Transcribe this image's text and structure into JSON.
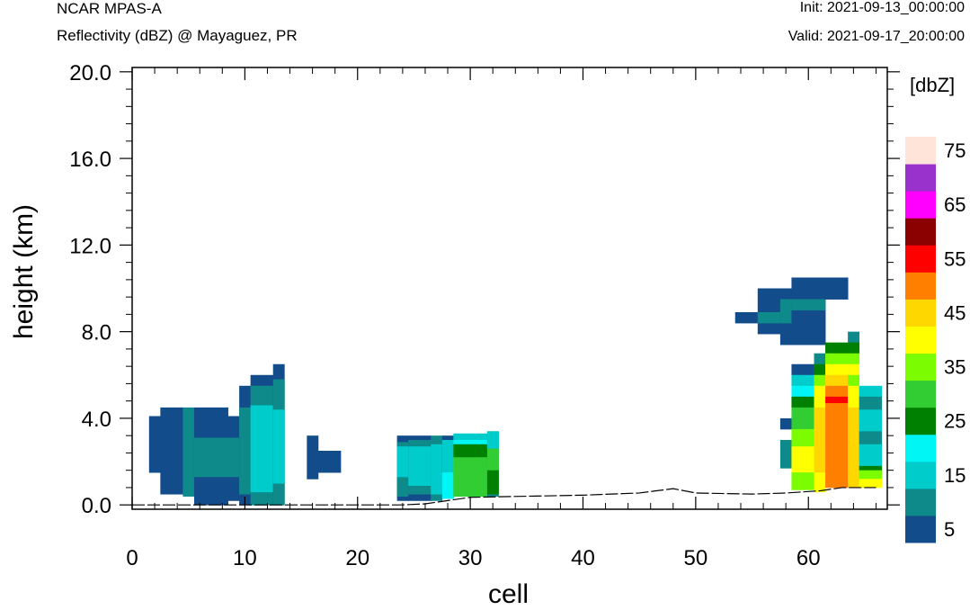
{
  "header": {
    "title": "NCAR MPAS-A",
    "subtitle": "Reflectivity (dBZ) @ Mayaguez, PR",
    "init": "Init: 2021-09-13_00:00:00",
    "valid": "Valid: 2021-09-17_20:00:00"
  },
  "colors": {
    "bins": [
      "#134c8b",
      "#0f8a8a",
      "#00cccc",
      "#00f5f5",
      "#008000",
      "#32cd32",
      "#7cfc00",
      "#ffff00",
      "#ffd700",
      "#ff8000",
      "#ff0000",
      "#8b0000",
      "#ff00ff",
      "#9932cc",
      "#ffe4d9"
    ],
    "ground": "#000000"
  },
  "chart_data": {
    "type": "heatmap",
    "title": "Reflectivity (dBZ) @ Mayaguez, PR",
    "xlabel": "cell",
    "ylabel": "height (km)",
    "xlim": [
      0,
      67
    ],
    "ylim": [
      -0.2,
      20.2
    ],
    "xticks": [
      0,
      10,
      20,
      30,
      40,
      50,
      60
    ],
    "yticks": [
      0.0,
      4.0,
      8.0,
      12.0,
      16.0,
      20.0
    ],
    "xtick_labels": [
      "0",
      "10",
      "20",
      "30",
      "40",
      "50",
      "60"
    ],
    "ytick_labels": [
      "0.0",
      "4.0",
      "8.0",
      "12.0",
      "16.0",
      "20.0"
    ],
    "colorbar": {
      "units": "[dbZ]",
      "levels": [
        5,
        10,
        15,
        20,
        25,
        30,
        35,
        40,
        45,
        50,
        55,
        60,
        65,
        70,
        75
      ],
      "labels": [
        "5",
        "15",
        "25",
        "35",
        "45",
        "55",
        "65",
        "75"
      ]
    },
    "terrain": [
      [
        0,
        0
      ],
      [
        24,
        0
      ],
      [
        26,
        0.05
      ],
      [
        28,
        0.2
      ],
      [
        30,
        0.35
      ],
      [
        35,
        0.4
      ],
      [
        40,
        0.45
      ],
      [
        45,
        0.55
      ],
      [
        48,
        0.75
      ],
      [
        50,
        0.55
      ],
      [
        55,
        0.5
      ],
      [
        58,
        0.55
      ],
      [
        61,
        0.65
      ],
      [
        63,
        0.8
      ],
      [
        66,
        0.8
      ]
    ],
    "cells": [
      [
        1.5,
        2.5,
        1.5,
        4.1,
        5
      ],
      [
        2.5,
        4.5,
        0.5,
        4.5,
        5
      ],
      [
        4.5,
        5.5,
        0.4,
        4.5,
        10
      ],
      [
        5.5,
        8.5,
        0.0,
        4.5,
        5
      ],
      [
        5.5,
        8.5,
        1.3,
        3.1,
        10
      ],
      [
        8.5,
        9.5,
        0.2,
        4.1,
        5
      ],
      [
        8.5,
        9.5,
        1.3,
        3.1,
        10
      ],
      [
        9.5,
        10.5,
        0.0,
        5.5,
        5
      ],
      [
        9.5,
        10.5,
        0.5,
        4.5,
        10
      ],
      [
        10.5,
        12.5,
        0.0,
        6.0,
        5
      ],
      [
        10.5,
        12.5,
        0.0,
        5.5,
        10
      ],
      [
        10.5,
        12.5,
        0.6,
        4.6,
        15
      ],
      [
        12.5,
        13.5,
        0.0,
        6.5,
        5
      ],
      [
        12.5,
        13.5,
        0.0,
        5.8,
        10
      ],
      [
        12.5,
        13.5,
        1.0,
        4.4,
        15
      ],
      [
        15.5,
        16.5,
        1.2,
        3.2,
        5
      ],
      [
        16.5,
        18.5,
        1.5,
        2.5,
        5
      ],
      [
        23.5,
        24.5,
        0.2,
        3.2,
        5
      ],
      [
        23.5,
        24.5,
        0.4,
        2.9,
        10
      ],
      [
        23.5,
        24.5,
        1.3,
        2.7,
        15
      ],
      [
        24.5,
        26.5,
        0.2,
        3.2,
        5
      ],
      [
        24.5,
        26.5,
        0.5,
        3.0,
        10
      ],
      [
        24.5,
        26.5,
        0.9,
        2.7,
        15
      ],
      [
        26.5,
        27.5,
        0.2,
        3.2,
        10
      ],
      [
        26.5,
        27.5,
        0.5,
        2.8,
        15
      ],
      [
        27.5,
        28.5,
        0.3,
        3.2,
        5
      ],
      [
        27.5,
        28.5,
        0.5,
        3.0,
        15
      ],
      [
        27.5,
        28.5,
        0.3,
        1.5,
        20
      ],
      [
        28.5,
        31.5,
        0.4,
        3.3,
        15
      ],
      [
        28.5,
        31.5,
        0.4,
        3.0,
        20
      ],
      [
        28.5,
        31.5,
        2.2,
        2.8,
        25
      ],
      [
        28.5,
        31.5,
        0.4,
        2.2,
        30
      ],
      [
        31.5,
        32.5,
        0.4,
        3.4,
        10
      ],
      [
        31.5,
        32.5,
        2.6,
        3.4,
        15
      ],
      [
        31.5,
        32.5,
        1.6,
        2.6,
        30
      ],
      [
        31.5,
        32.5,
        0.5,
        1.6,
        25
      ],
      [
        53.5,
        55.5,
        8.4,
        8.9,
        5
      ],
      [
        55.5,
        57.5,
        7.9,
        10.0,
        5
      ],
      [
        55.5,
        57.5,
        8.4,
        8.9,
        10
      ],
      [
        57.5,
        58.5,
        7.4,
        10.0,
        5
      ],
      [
        57.5,
        58.5,
        8.4,
        9.5,
        10
      ],
      [
        58.5,
        61.5,
        7.4,
        10.5,
        5
      ],
      [
        58.5,
        61.5,
        9.0,
        9.5,
        10
      ],
      [
        61.5,
        63.5,
        9.5,
        10.5,
        5
      ],
      [
        57.5,
        58.5,
        3.5,
        4.0,
        5
      ],
      [
        57.5,
        58.5,
        1.7,
        3.0,
        10
      ],
      [
        58.5,
        59.5,
        6.0,
        6.5,
        5
      ],
      [
        58.5,
        59.5,
        5.5,
        6.0,
        15
      ],
      [
        58.5,
        59.5,
        5.0,
        5.5,
        20
      ],
      [
        58.5,
        59.5,
        4.5,
        5.0,
        25
      ],
      [
        58.5,
        59.5,
        3.5,
        4.5,
        30
      ],
      [
        58.5,
        59.5,
        2.7,
        3.5,
        35
      ],
      [
        58.5,
        59.5,
        1.5,
        2.7,
        40
      ],
      [
        58.5,
        59.5,
        0.7,
        1.5,
        35
      ],
      [
        59.5,
        60.5,
        6.0,
        6.5,
        5
      ],
      [
        59.5,
        60.5,
        5.5,
        6.0,
        15
      ],
      [
        59.5,
        60.5,
        5.0,
        5.5,
        20
      ],
      [
        59.5,
        60.5,
        4.5,
        5.0,
        25
      ],
      [
        59.5,
        60.5,
        3.5,
        4.5,
        30
      ],
      [
        59.5,
        60.5,
        2.7,
        3.5,
        35
      ],
      [
        59.5,
        60.5,
        1.5,
        2.7,
        40
      ],
      [
        59.5,
        60.5,
        0.7,
        1.5,
        35
      ],
      [
        60.5,
        61.5,
        6.5,
        7.0,
        10
      ],
      [
        60.5,
        61.5,
        6.0,
        6.5,
        25
      ],
      [
        60.5,
        61.5,
        5.5,
        6.0,
        35
      ],
      [
        60.5,
        61.5,
        4.5,
        5.5,
        40
      ],
      [
        60.5,
        61.5,
        1.5,
        4.5,
        45
      ],
      [
        60.5,
        61.5,
        0.6,
        1.5,
        40
      ],
      [
        61.5,
        63.5,
        7.0,
        7.5,
        25
      ],
      [
        61.5,
        63.5,
        6.5,
        7.0,
        35
      ],
      [
        61.5,
        63.5,
        6.0,
        6.5,
        40
      ],
      [
        61.5,
        63.5,
        5.5,
        6.0,
        45
      ],
      [
        61.5,
        63.5,
        5.0,
        5.5,
        50
      ],
      [
        61.5,
        63.5,
        4.7,
        5.0,
        55
      ],
      [
        61.5,
        63.5,
        0.8,
        4.7,
        50
      ],
      [
        63.5,
        64.5,
        7.5,
        8.0,
        10
      ],
      [
        63.5,
        64.5,
        7.0,
        7.5,
        25
      ],
      [
        63.5,
        64.5,
        6.5,
        7.0,
        35
      ],
      [
        63.5,
        64.5,
        6.0,
        6.5,
        40
      ],
      [
        63.5,
        64.5,
        5.5,
        6.0,
        35
      ],
      [
        63.5,
        64.5,
        4.5,
        5.5,
        40
      ],
      [
        63.5,
        64.5,
        0.8,
        4.5,
        45
      ],
      [
        64.5,
        66.5,
        5.0,
        5.5,
        15
      ],
      [
        64.5,
        66.5,
        4.4,
        5.0,
        10
      ],
      [
        64.5,
        66.5,
        3.4,
        4.4,
        15
      ],
      [
        64.5,
        66.5,
        2.8,
        3.4,
        10
      ],
      [
        64.5,
        66.5,
        1.8,
        2.8,
        15
      ],
      [
        64.5,
        66.5,
        1.6,
        1.8,
        25
      ],
      [
        64.5,
        66.5,
        1.2,
        1.6,
        35
      ],
      [
        64.5,
        66.5,
        0.8,
        1.2,
        40
      ]
    ]
  }
}
